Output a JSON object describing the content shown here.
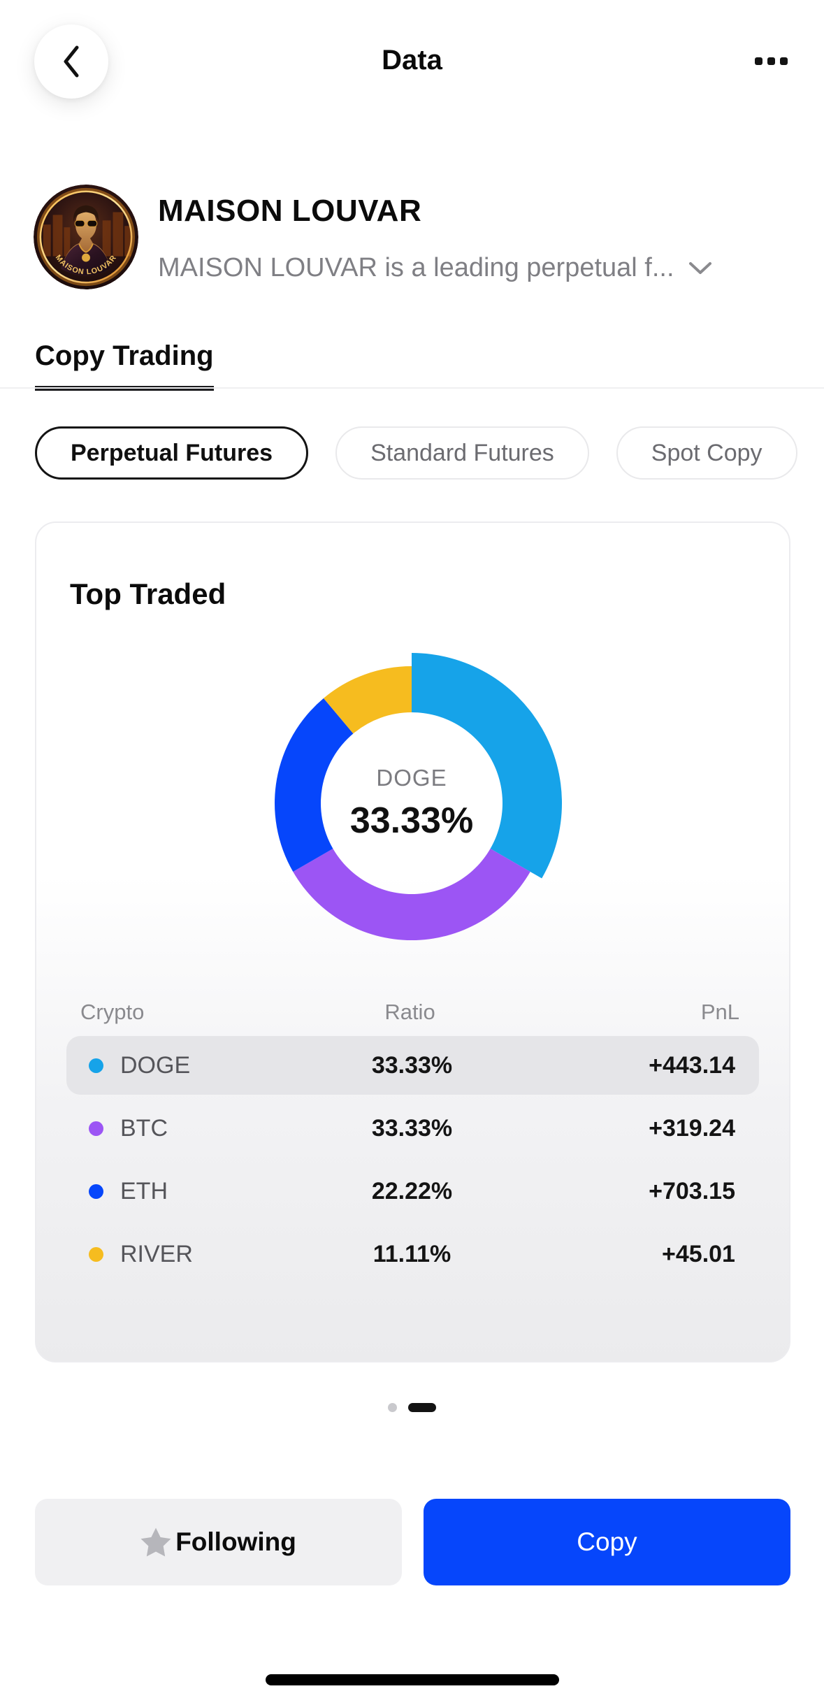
{
  "header": {
    "title": "Data"
  },
  "profile": {
    "name": "MAISON LOUVAR",
    "description": "MAISON LOUVAR is a leading perpetual f...",
    "avatar_coin_text": "MAISON LOUVAR"
  },
  "tabs": {
    "active_tab": "Copy Trading"
  },
  "filter_pills": [
    {
      "label": "Perpetual Futures",
      "selected": true
    },
    {
      "label": "Standard Futures",
      "selected": false
    },
    {
      "label": "Spot Copy",
      "selected": false
    }
  ],
  "card": {
    "title": "Top Traded",
    "donut_center": {
      "label": "DOGE",
      "value": "33.33%"
    }
  },
  "chart_data": {
    "type": "pie",
    "style": "donut",
    "title": "Top Traded",
    "start_angle_deg": 0,
    "direction": "clockwise",
    "center_label": "DOGE",
    "center_value": "33.33%",
    "segments": [
      {
        "label": "DOGE",
        "value": 33.33,
        "color": "#16A3E9",
        "highlighted": true
      },
      {
        "label": "BTC",
        "value": 33.33,
        "color": "#9C55F4",
        "highlighted": false
      },
      {
        "label": "ETH",
        "value": 22.22,
        "color": "#0646FB",
        "highlighted": false
      },
      {
        "label": "RIVER",
        "value": 11.11,
        "color": "#F6BC1F",
        "highlighted": false
      }
    ]
  },
  "table": {
    "headers": [
      "Crypto",
      "Ratio",
      "PnL"
    ],
    "rows": [
      {
        "crypto": "DOGE",
        "ratio": "33.33%",
        "pnl": "+443.14",
        "highlighted": true
      },
      {
        "crypto": "BTC",
        "ratio": "33.33%",
        "pnl": "+319.24",
        "highlighted": false
      },
      {
        "crypto": "ETH",
        "ratio": "22.22%",
        "pnl": "+703.15",
        "highlighted": false
      },
      {
        "crypto": "RIVER",
        "ratio": "11.11%",
        "pnl": "+45.01",
        "highlighted": false
      }
    ]
  },
  "pagination": {
    "dots": [
      {
        "active": false
      },
      {
        "active": true
      }
    ]
  },
  "actions": {
    "follow_label": "Following",
    "copy_label": "Copy"
  },
  "colors": {
    "accent_blue": "#0646FB",
    "row_highlight": "#E5E5E8",
    "muted_text": "#8A8A8E"
  }
}
